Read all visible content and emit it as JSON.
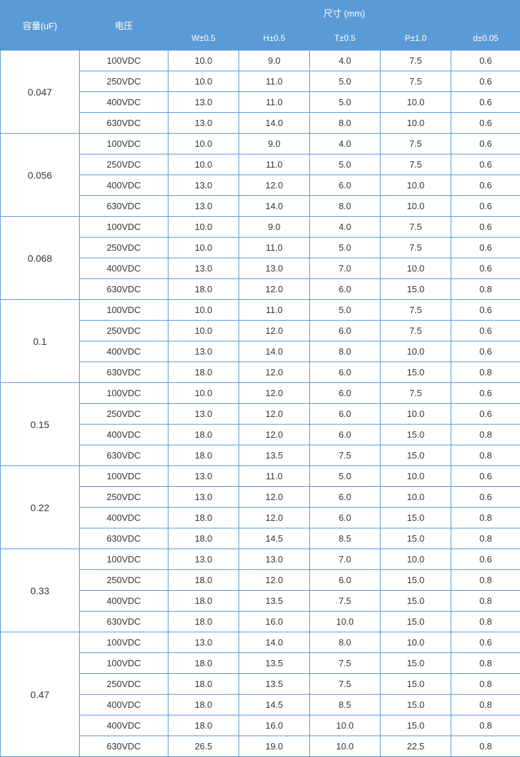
{
  "header": {
    "capacity": "容量(uF)",
    "voltage": "电压",
    "dimensions": "尺寸 (mm)",
    "w": "W±0.5",
    "h": "H±0.5",
    "t": "T±0.5",
    "p": "P±1.0",
    "d": "d±0.05"
  },
  "colors": {
    "header_bg": "#5b9bd5",
    "header_text": "#ffffff",
    "border": "#5b9bd5",
    "body_text": "#333333",
    "background": "#ffffff"
  },
  "groups": [
    {
      "capacity": "0.047",
      "rows": [
        {
          "voltage": "100VDC",
          "w": "10.0",
          "h": "9.0",
          "t": "4.0",
          "p": "7.5",
          "d": "0.6"
        },
        {
          "voltage": "250VDC",
          "w": "10.0",
          "h": "11.0",
          "t": "5.0",
          "p": "7.5",
          "d": "0.6"
        },
        {
          "voltage": "400VDC",
          "w": "13.0",
          "h": "11.0",
          "t": "5.0",
          "p": "10.0",
          "d": "0.6"
        },
        {
          "voltage": "630VDC",
          "w": "13.0",
          "h": "14.0",
          "t": "8.0",
          "p": "10.0",
          "d": "0.6"
        }
      ]
    },
    {
      "capacity": "0.056",
      "rows": [
        {
          "voltage": "100VDC",
          "w": "10.0",
          "h": "9.0",
          "t": "4.0",
          "p": "7.5",
          "d": "0.6"
        },
        {
          "voltage": "250VDC",
          "w": "10.0",
          "h": "11.0",
          "t": "5.0",
          "p": "7.5",
          "d": "0.6"
        },
        {
          "voltage": "400VDC",
          "w": "13.0",
          "h": "12.0",
          "t": "6.0",
          "p": "10.0",
          "d": "0.6"
        },
        {
          "voltage": "630VDC",
          "w": "13.0",
          "h": "14.0",
          "t": "8.0",
          "p": "10.0",
          "d": "0.6"
        }
      ]
    },
    {
      "capacity": "0.068",
      "rows": [
        {
          "voltage": "100VDC",
          "w": "10.0",
          "h": "9.0",
          "t": "4.0",
          "p": "7.5",
          "d": "0.6"
        },
        {
          "voltage": "250VDC",
          "w": "10.0",
          "h": "11.0",
          "t": "5.0",
          "p": "7.5",
          "d": "0.6"
        },
        {
          "voltage": "400VDC",
          "w": "13.0",
          "h": "13.0",
          "t": "7.0",
          "p": "10.0",
          "d": "0.6"
        },
        {
          "voltage": "630VDC",
          "w": "18.0",
          "h": "12.0",
          "t": "6.0",
          "p": "15.0",
          "d": "0.8"
        }
      ]
    },
    {
      "capacity": "0.1",
      "rows": [
        {
          "voltage": "100VDC",
          "w": "10.0",
          "h": "11.0",
          "t": "5.0",
          "p": "7.5",
          "d": "0.6"
        },
        {
          "voltage": "250VDC",
          "w": "10.0",
          "h": "12.0",
          "t": "6.0",
          "p": "7.5",
          "d": "0.6"
        },
        {
          "voltage": "400VDC",
          "w": "13.0",
          "h": "14.0",
          "t": "8.0",
          "p": "10.0",
          "d": "0.6"
        },
        {
          "voltage": "630VDC",
          "w": "18.0",
          "h": "12.0",
          "t": "6.0",
          "p": "15.0",
          "d": "0.8"
        }
      ]
    },
    {
      "capacity": "0.15",
      "rows": [
        {
          "voltage": "100VDC",
          "w": "10.0",
          "h": "12.0",
          "t": "6.0",
          "p": "7.5",
          "d": "0.6"
        },
        {
          "voltage": "250VDC",
          "w": "13.0",
          "h": "12.0",
          "t": "6.0",
          "p": "10.0",
          "d": "0.6"
        },
        {
          "voltage": "400VDC",
          "w": "18.0",
          "h": "12.0",
          "t": "6.0",
          "p": "15.0",
          "d": "0.8"
        },
        {
          "voltage": "630VDC",
          "w": "18.0",
          "h": "13.5",
          "t": "7.5",
          "p": "15.0",
          "d": "0.8"
        }
      ]
    },
    {
      "capacity": "0.22",
      "rows": [
        {
          "voltage": "100VDC",
          "w": "13.0",
          "h": "11.0",
          "t": "5.0",
          "p": "10.0",
          "d": "0.6"
        },
        {
          "voltage": "250VDC",
          "w": "13.0",
          "h": "12.0",
          "t": "6.0",
          "p": "10.0",
          "d": "0.6"
        },
        {
          "voltage": "400VDC",
          "w": "18.0",
          "h": "12.0",
          "t": "6.0",
          "p": "15.0",
          "d": "0.8"
        },
        {
          "voltage": "630VDC",
          "w": "18.0",
          "h": "14.5",
          "t": "8.5",
          "p": "15.0",
          "d": "0.8"
        }
      ]
    },
    {
      "capacity": "0.33",
      "rows": [
        {
          "voltage": "100VDC",
          "w": "13.0",
          "h": "13.0",
          "t": "7.0",
          "p": "10.0",
          "d": "0.6"
        },
        {
          "voltage": "250VDC",
          "w": "18.0",
          "h": "12.0",
          "t": "6.0",
          "p": "15.0",
          "d": "0.8"
        },
        {
          "voltage": "400VDC",
          "w": "18.0",
          "h": "13.5",
          "t": "7.5",
          "p": "15.0",
          "d": "0.8"
        },
        {
          "voltage": "630VDC",
          "w": "18.0",
          "h": "16.0",
          "t": "10.0",
          "p": "15.0",
          "d": "0.8"
        }
      ]
    },
    {
      "capacity": "0.47",
      "rows": [
        {
          "voltage": "100VDC",
          "w": "13.0",
          "h": "14.0",
          "t": "8.0",
          "p": "10.0",
          "d": "0.6"
        },
        {
          "voltage": "100VDC",
          "w": "18.0",
          "h": "13.5",
          "t": "7.5",
          "p": "15.0",
          "d": "0.8"
        },
        {
          "voltage": "250VDC",
          "w": "18.0",
          "h": "13.5",
          "t": "7.5",
          "p": "15.0",
          "d": "0.8"
        },
        {
          "voltage": "400VDC",
          "w": "18.0",
          "h": "14.5",
          "t": "8.5",
          "p": "15.0",
          "d": "0.8"
        },
        {
          "voltage": "400VDC",
          "w": "18.0",
          "h": "16.0",
          "t": "10.0",
          "p": "15.0",
          "d": "0.8"
        },
        {
          "voltage": "630VDC",
          "w": "26.5",
          "h": "19.0",
          "t": "10.0",
          "p": "22.5",
          "d": "0.8"
        }
      ]
    }
  ]
}
